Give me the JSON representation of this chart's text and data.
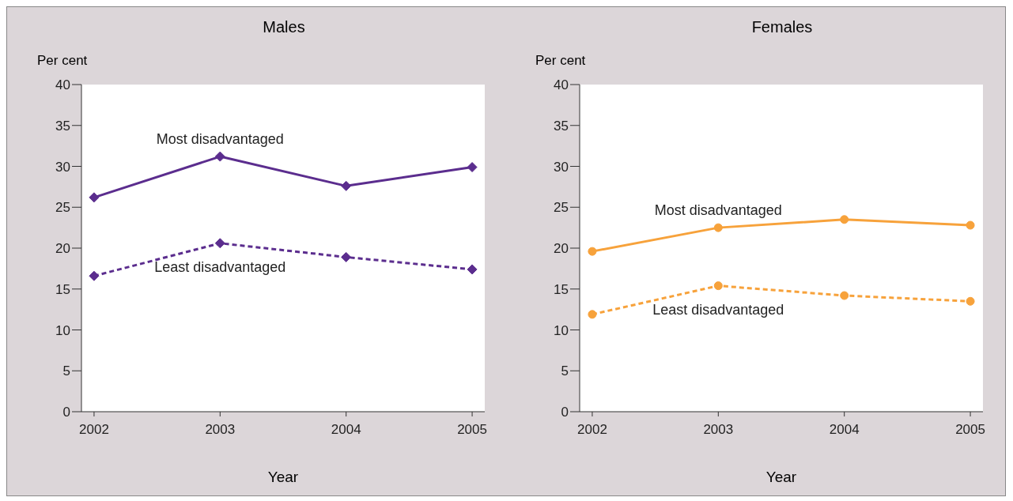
{
  "chart_data": [
    {
      "type": "line",
      "title": "Males",
      "ylabel": "Per cent",
      "xlabel": "Year",
      "x": [
        2002,
        2003,
        2004,
        2005
      ],
      "xlim": [
        2001.9,
        2005.1
      ],
      "xticks": [
        2002,
        2003,
        2004,
        2005
      ],
      "ylim": [
        0,
        40
      ],
      "yticks": [
        0,
        5,
        10,
        15,
        20,
        25,
        30,
        35,
        40
      ],
      "marker": "diamond",
      "grid": false,
      "legend": false,
      "series": [
        {
          "name": "Most disadvantaged",
          "color": "#5b2d8e",
          "line_style": "solid",
          "values": [
            26.2,
            31.2,
            27.6,
            29.9
          ]
        },
        {
          "name": "Least disadvantaged",
          "color": "#5b2d8e",
          "line_style": "dashed",
          "values": [
            16.6,
            20.6,
            18.9,
            17.4
          ]
        }
      ]
    },
    {
      "type": "line",
      "title": "Females",
      "ylabel": "Per cent",
      "xlabel": "Year",
      "x": [
        2002,
        2003,
        2004,
        2005
      ],
      "xlim": [
        2001.9,
        2005.1
      ],
      "xticks": [
        2002,
        2003,
        2004,
        2005
      ],
      "ylim": [
        0,
        40
      ],
      "yticks": [
        0,
        5,
        10,
        15,
        20,
        25,
        30,
        35,
        40
      ],
      "marker": "circle",
      "grid": false,
      "legend": false,
      "series": [
        {
          "name": "Most disadvantaged",
          "color": "#f7a23b",
          "line_style": "solid",
          "values": [
            19.6,
            22.5,
            23.5,
            22.8
          ]
        },
        {
          "name": "Least disadvantaged",
          "color": "#f7a23b",
          "line_style": "dashed",
          "values": [
            11.9,
            15.4,
            14.2,
            13.5
          ]
        }
      ]
    }
  ]
}
